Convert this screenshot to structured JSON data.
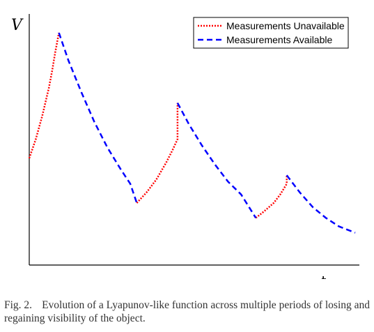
{
  "chart_data": {
    "type": "line",
    "xlabel": "t",
    "ylabel": "V",
    "legend_position": "top-right",
    "grid": false,
    "x_ticks_shown": false,
    "y_ticks_shown": false,
    "series": [
      {
        "name": "Measurements Unavailable",
        "color": "#ff0000",
        "style": "dotted",
        "segments": [
          [
            [
              0.0,
              0.41
            ],
            [
              0.02,
              0.5
            ],
            [
              0.04,
              0.61
            ],
            [
              0.06,
              0.74
            ],
            [
              0.07,
              0.82
            ],
            [
              0.08,
              0.91
            ],
            [
              0.091,
              1.0
            ]
          ],
          [
            [
              0.33,
              0.2
            ],
            [
              0.36,
              0.25
            ],
            [
              0.39,
              0.31
            ],
            [
              0.42,
              0.39
            ],
            [
              0.44,
              0.45
            ],
            [
              0.455,
              0.5
            ],
            [
              0.455,
              0.67
            ]
          ],
          [
            [
              0.695,
              0.13
            ],
            [
              0.72,
              0.16
            ],
            [
              0.75,
              0.2
            ],
            [
              0.77,
              0.24
            ],
            [
              0.79,
              0.29
            ],
            [
              0.79,
              0.33
            ]
          ]
        ]
      },
      {
        "name": "Measurements Available",
        "color": "#0000ff",
        "style": "dashed",
        "segments": [
          [
            [
              0.091,
              1.0
            ],
            [
              0.12,
              0.87
            ],
            [
              0.16,
              0.72
            ],
            [
              0.2,
              0.58
            ],
            [
              0.24,
              0.46
            ],
            [
              0.28,
              0.36
            ],
            [
              0.31,
              0.29
            ],
            [
              0.33,
              0.2
            ]
          ],
          [
            [
              0.455,
              0.67
            ],
            [
              0.49,
              0.57
            ],
            [
              0.53,
              0.47
            ],
            [
              0.57,
              0.38
            ],
            [
              0.61,
              0.3
            ],
            [
              0.65,
              0.24
            ],
            [
              0.695,
              0.13
            ]
          ],
          [
            [
              0.79,
              0.33
            ],
            [
              0.83,
              0.25
            ],
            [
              0.87,
              0.18
            ],
            [
              0.91,
              0.13
            ],
            [
              0.95,
              0.09
            ],
            [
              1.0,
              0.06
            ]
          ]
        ]
      }
    ]
  },
  "caption": {
    "label": "Fig. 2.",
    "text": "Evolution of a Lyapunov-like function across multiple periods of losing and regaining visibility of the object."
  }
}
